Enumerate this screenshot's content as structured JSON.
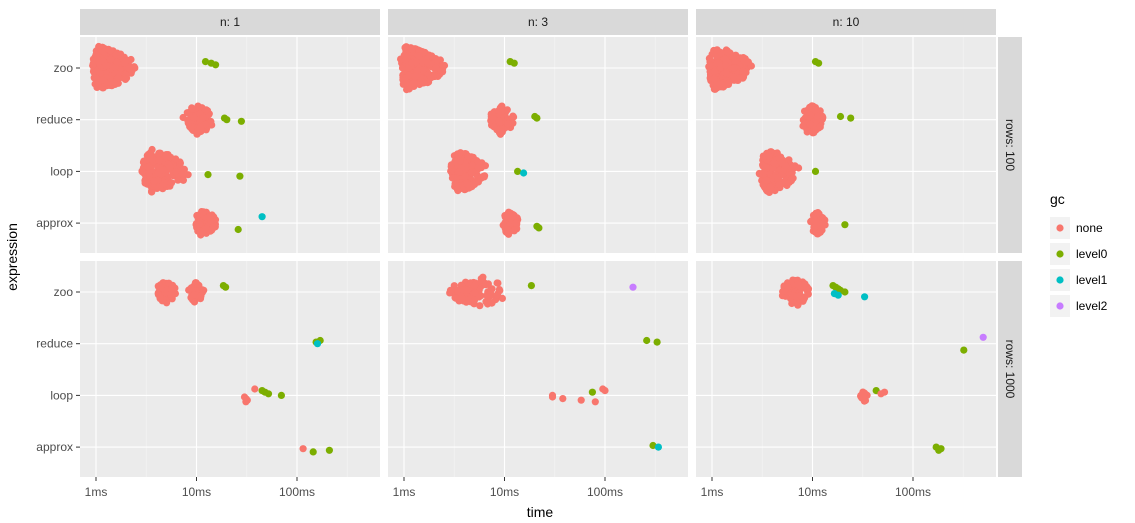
{
  "chart_data": {
    "type": "scatter",
    "subtype": "beeswarm, faceted",
    "xlabel": "time",
    "ylabel": "expression",
    "x_scale": "log10",
    "x_unit": "ms",
    "x_ticks": [
      {
        "v": 1,
        "label": "1ms"
      },
      {
        "v": 10,
        "label": "10ms"
      },
      {
        "v": 100,
        "label": "100ms"
      }
    ],
    "categories": [
      "zoo",
      "reduce",
      "loop",
      "approx"
    ],
    "col_facets": [
      "n: 1",
      "n: 3",
      "n: 10"
    ],
    "row_facets": [
      "rows: 100",
      "rows: 1000"
    ],
    "legend": {
      "title": "gc",
      "placement": "right",
      "entries": [
        {
          "name": "none",
          "color": "#F8766D"
        },
        {
          "name": "level0",
          "color": "#7CAE00"
        },
        {
          "name": "level1",
          "color": "#00BFC4"
        },
        {
          "name": "level2",
          "color": "#C77CFF"
        }
      ]
    },
    "panels": [
      {
        "col": 0,
        "row": 0,
        "clusters": [
          {
            "expr": "zoo",
            "gc": "none",
            "min": 0.9,
            "mode": 1.05,
            "max": 2.6,
            "n": 260
          },
          {
            "expr": "reduce",
            "gc": "none",
            "min": 7,
            "mode": 10,
            "max": 15,
            "n": 90
          },
          {
            "expr": "loop",
            "gc": "none",
            "min": 2.8,
            "mode": 3.6,
            "max": 8.8,
            "n": 200
          },
          {
            "expr": "approx",
            "gc": "none",
            "min": 9.5,
            "mode": 11,
            "max": 17,
            "n": 70
          }
        ],
        "points": [
          [
            "zoo",
            12.3,
            "level0"
          ],
          [
            "zoo",
            14,
            "level0"
          ],
          [
            "zoo",
            15.5,
            "level0"
          ],
          [
            "reduce",
            19,
            "level0"
          ],
          [
            "reduce",
            20,
            "level0"
          ],
          [
            "reduce",
            28,
            "level0"
          ],
          [
            "loop",
            13,
            "level0"
          ],
          [
            "loop",
            27,
            "level0"
          ],
          [
            "approx",
            26,
            "level0"
          ],
          [
            "approx",
            45,
            "level1"
          ]
        ]
      },
      {
        "col": 1,
        "row": 0,
        "clusters": [
          {
            "expr": "zoo",
            "gc": "none",
            "min": 0.9,
            "mode": 1.05,
            "max": 2.6,
            "n": 260
          },
          {
            "expr": "reduce",
            "gc": "none",
            "min": 7,
            "mode": 9,
            "max": 13,
            "n": 90
          },
          {
            "expr": "loop",
            "gc": "none",
            "min": 2.9,
            "mode": 3.4,
            "max": 7,
            "n": 150
          },
          {
            "expr": "approx",
            "gc": "none",
            "min": 9.5,
            "mode": 11,
            "max": 14,
            "n": 60
          }
        ],
        "points": [
          [
            "zoo",
            11.4,
            "level0"
          ],
          [
            "zoo",
            12.5,
            "level0"
          ],
          [
            "reduce",
            20,
            "level0"
          ],
          [
            "reduce",
            21,
            "level0"
          ],
          [
            "loop",
            13.5,
            "level0"
          ],
          [
            "loop",
            15.5,
            "level1"
          ],
          [
            "approx",
            21,
            "level0"
          ],
          [
            "approx",
            22,
            "level0"
          ]
        ]
      },
      {
        "col": 2,
        "row": 0,
        "clusters": [
          {
            "expr": "zoo",
            "gc": "none",
            "min": 0.9,
            "mode": 1.05,
            "max": 2.5,
            "n": 240
          },
          {
            "expr": "reduce",
            "gc": "none",
            "min": 7.6,
            "mode": 9.5,
            "max": 13.5,
            "n": 90
          },
          {
            "expr": "loop",
            "gc": "none",
            "min": 2.9,
            "mode": 3.6,
            "max": 7.6,
            "n": 160
          },
          {
            "expr": "approx",
            "gc": "none",
            "min": 9.5,
            "mode": 11,
            "max": 13.5,
            "n": 60
          }
        ],
        "points": [
          [
            "zoo",
            10.7,
            "level0"
          ],
          [
            "zoo",
            11.5,
            "level0"
          ],
          [
            "reduce",
            19,
            "level0"
          ],
          [
            "reduce",
            24,
            "level0"
          ],
          [
            "loop",
            10.7,
            "level0"
          ],
          [
            "approx",
            21,
            "level0"
          ]
        ]
      },
      {
        "col": 0,
        "row": 1,
        "clusters": [
          {
            "expr": "zoo",
            "gc": "none",
            "min": 3.8,
            "mode": 5,
            "max": 6.6,
            "n": 50
          },
          {
            "expr": "zoo",
            "gc": "none",
            "min": 8,
            "mode": 9.6,
            "max": 12,
            "n": 45
          }
        ],
        "points": [
          [
            "zoo",
            18.5,
            "level0"
          ],
          [
            "zoo",
            19.5,
            "level0"
          ],
          [
            "reduce",
            170,
            "level0"
          ],
          [
            "reduce",
            155,
            "level0"
          ],
          [
            "reduce",
            160,
            "level1"
          ],
          [
            "loop",
            30,
            "none"
          ],
          [
            "loop",
            31,
            "none"
          ],
          [
            "loop",
            32,
            "none"
          ],
          [
            "loop",
            31,
            "none"
          ],
          [
            "loop",
            38,
            "none"
          ],
          [
            "loop",
            45,
            "level0"
          ],
          [
            "loop",
            48,
            "level0"
          ],
          [
            "loop",
            52,
            "level0"
          ],
          [
            "loop",
            70,
            "level0"
          ],
          [
            "approx",
            115,
            "none"
          ],
          [
            "approx",
            210,
            "level0"
          ],
          [
            "approx",
            145,
            "level0"
          ]
        ]
      },
      {
        "col": 1,
        "row": 1,
        "clusters": [
          {
            "expr": "zoo",
            "gc": "none",
            "min": 2.5,
            "mode": 6,
            "max": 11,
            "n": 90
          }
        ],
        "points": [
          [
            "zoo",
            18.5,
            "level0"
          ],
          [
            "zoo",
            190,
            "level2"
          ],
          [
            "reduce",
            260,
            "level0"
          ],
          [
            "reduce",
            330,
            "level0"
          ],
          [
            "loop",
            30,
            "none"
          ],
          [
            "loop",
            30,
            "none"
          ],
          [
            "loop",
            38,
            "none"
          ],
          [
            "loop",
            58,
            "none"
          ],
          [
            "loop",
            80,
            "none"
          ],
          [
            "loop",
            95,
            "none"
          ],
          [
            "loop",
            100,
            "none"
          ],
          [
            "loop",
            75,
            "level0"
          ],
          [
            "approx",
            300,
            "level0"
          ],
          [
            "approx",
            340,
            "level1"
          ]
        ]
      },
      {
        "col": 2,
        "row": 1,
        "clusters": [
          {
            "expr": "zoo",
            "gc": "none",
            "min": 4.8,
            "mode": 7,
            "max": 9.5,
            "n": 80
          },
          {
            "expr": "loop",
            "gc": "none",
            "min": 30,
            "mode": 32,
            "max": 36,
            "n": 16
          }
        ],
        "points": [
          [
            "zoo",
            16,
            "level0"
          ],
          [
            "zoo",
            17,
            "level0"
          ],
          [
            "zoo",
            18,
            "level0"
          ],
          [
            "zoo",
            19,
            "level0"
          ],
          [
            "zoo",
            21,
            "level0"
          ],
          [
            "zoo",
            16.5,
            "level1"
          ],
          [
            "zoo",
            18,
            "level1"
          ],
          [
            "zoo",
            33,
            "level1"
          ],
          [
            "reduce",
            320,
            "level0"
          ],
          [
            "reduce",
            500,
            "level2"
          ],
          [
            "loop",
            43,
            "level0"
          ],
          [
            "loop",
            52,
            "none"
          ],
          [
            "loop",
            48,
            "none"
          ],
          [
            "approx",
            170,
            "level0"
          ],
          [
            "approx",
            190,
            "level0"
          ],
          [
            "approx",
            180,
            "level0"
          ]
        ]
      }
    ]
  }
}
